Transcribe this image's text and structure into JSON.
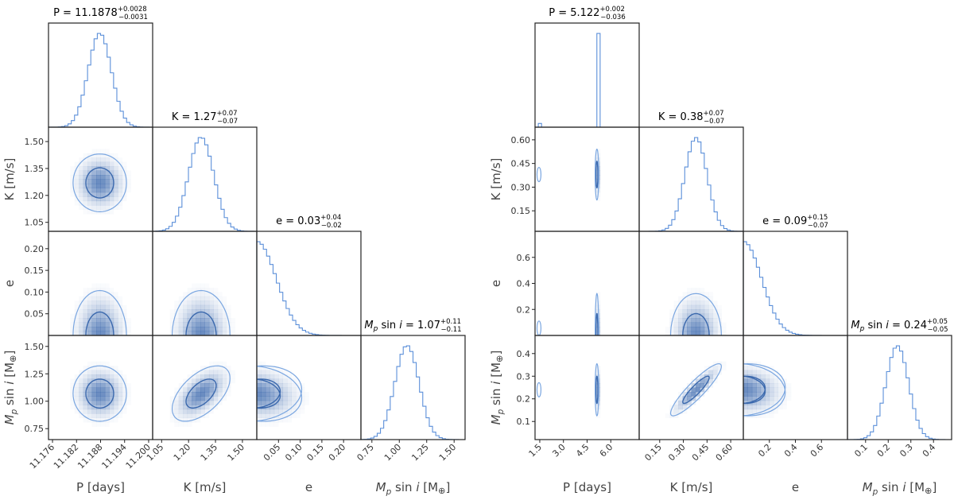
{
  "colors": {
    "hist": "#5b8fd9",
    "contour_outer": "#7aa6e0",
    "contour_inner": "#3a68ad",
    "density": "#2f5fa8",
    "frame": "#222222"
  },
  "chart_data": [
    {
      "type": "corner",
      "name": "left",
      "params": [
        {
          "key": "P",
          "xlabel": "P [days]",
          "ylabel": "",
          "title_main": "P = 11.1878",
          "title_sup": "+0.0028",
          "title_sub": "−0.0031",
          "range": [
            11.175,
            11.201
          ],
          "ticks": [
            11.176,
            11.182,
            11.188,
            11.194,
            11.2
          ],
          "tick_labels": [
            "11.176",
            "11.182",
            "11.188",
            "11.194",
            "11.200"
          ],
          "mean": 11.1878,
          "sd": 0.0029,
          "hist": "gauss"
        },
        {
          "key": "K",
          "xlabel": "K [m/s]",
          "ylabel": "K [m/s]",
          "title_main": "K = 1.27",
          "title_sup": "+0.07",
          "title_sub": "−0.07",
          "range": [
            1.0,
            1.58
          ],
          "ticks": [
            1.05,
            1.2,
            1.35,
            1.5
          ],
          "tick_labels": [
            "1.05",
            "1.20",
            "1.35",
            "1.50"
          ],
          "mean": 1.27,
          "sd": 0.07,
          "hist": "gauss"
        },
        {
          "key": "e",
          "xlabel": "e",
          "ylabel": "e",
          "title_main": "e = 0.03",
          "title_sup": "+0.04",
          "title_sub": "−0.02",
          "range": [
            0.0,
            0.24
          ],
          "ticks": [
            0.05,
            0.1,
            0.15,
            0.2
          ],
          "tick_labels": [
            "0.05",
            "0.10",
            "0.15",
            "0.20"
          ],
          "mean": 0.0,
          "sd": 0.045,
          "hist": "halfgauss"
        },
        {
          "key": "M",
          "xlabel": "M",
          "ylabel": "M",
          "title_main": " = 1.07",
          "title_sup": "+0.11",
          "title_sub": "−0.11",
          "range": [
            0.65,
            1.6
          ],
          "ticks": [
            0.75,
            1.0,
            1.25,
            1.5
          ],
          "tick_labels": [
            "0.75",
            "1.00",
            "1.25",
            "1.50"
          ],
          "mean": 1.07,
          "sd": 0.11,
          "hist": "gauss"
        }
      ],
      "pairs": [
        {
          "row": 1,
          "col": 0,
          "corr": 0.0
        },
        {
          "row": 2,
          "col": 0,
          "corr": 0.0
        },
        {
          "row": 2,
          "col": 1,
          "corr": 0.0
        },
        {
          "row": 3,
          "col": 0,
          "corr": 0.0
        },
        {
          "row": 3,
          "col": 1,
          "corr": 0.55
        },
        {
          "row": 3,
          "col": 2,
          "corr": -0.15
        }
      ]
    },
    {
      "type": "corner",
      "name": "right",
      "params": [
        {
          "key": "P",
          "xlabel": "P [days]",
          "ylabel": "",
          "title_main": "P = 5.122",
          "title_sup": "+0.002",
          "title_sub": "−0.036",
          "range": [
            1.2,
            7.8
          ],
          "ticks": [
            1.5,
            3.0,
            4.5,
            6.0
          ],
          "tick_labels": [
            "1.5",
            "3.0",
            "4.5",
            "6.0"
          ],
          "mean": 5.122,
          "sd": 0.03,
          "hist": "spike",
          "alias": 1.45
        },
        {
          "key": "K",
          "xlabel": "K [m/s]",
          "ylabel": "K [m/s]",
          "title_main": "K = 0.38",
          "title_sup": "+0.07",
          "title_sub": "−0.07",
          "range": [
            0.02,
            0.68
          ],
          "ticks": [
            0.15,
            0.3,
            0.45,
            0.6
          ],
          "tick_labels": [
            "0.15",
            "0.30",
            "0.45",
            "0.60"
          ],
          "mean": 0.38,
          "sd": 0.07,
          "hist": "gauss"
        },
        {
          "key": "e",
          "xlabel": "e",
          "ylabel": "e",
          "title_main": "e = 0.09",
          "title_sup": "+0.15",
          "title_sub": "−0.07",
          "range": [
            0.0,
            0.8
          ],
          "ticks": [
            0.2,
            0.4,
            0.6
          ],
          "tick_labels": [
            "0.2",
            "0.4",
            "0.6"
          ],
          "mean": 0.0,
          "sd": 0.14,
          "hist": "halfgauss"
        },
        {
          "key": "M",
          "xlabel": "M",
          "ylabel": "M",
          "title_main": " = 0.24",
          "title_sup": "+0.05",
          "title_sub": "−0.05",
          "range": [
            0.02,
            0.48
          ],
          "ticks": [
            0.1,
            0.2,
            0.3,
            0.4
          ],
          "tick_labels": [
            "0.1",
            "0.2",
            "0.3",
            "0.4"
          ],
          "mean": 0.24,
          "sd": 0.05,
          "hist": "gauss"
        }
      ],
      "pairs": [
        {
          "row": 1,
          "col": 0,
          "corr": 0.0
        },
        {
          "row": 2,
          "col": 0,
          "corr": 0.0
        },
        {
          "row": 2,
          "col": 1,
          "corr": 0.0
        },
        {
          "row": 3,
          "col": 0,
          "corr": 0.0
        },
        {
          "row": 3,
          "col": 1,
          "corr": 0.9
        },
        {
          "row": 3,
          "col": 2,
          "corr": -0.1
        }
      ]
    }
  ],
  "mass_label": {
    "sym": "M",
    "sub": "p",
    "mid": " sin ",
    "i": "i",
    "unit": " [M",
    "earth": "⊕",
    "close": "]"
  }
}
